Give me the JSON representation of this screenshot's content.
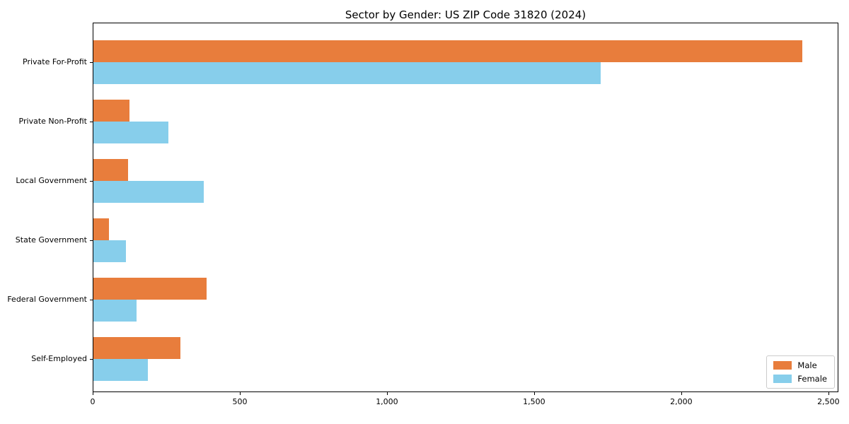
{
  "chart_data": {
    "type": "bar",
    "orientation": "horizontal",
    "title": "Sector by Gender: US ZIP Code 31820 (2024)",
    "categories": [
      "Private For-Profit",
      "Private Non-Profit",
      "Local Government",
      "State Government",
      "Federal Government",
      "Self-Employed"
    ],
    "series": [
      {
        "name": "Male",
        "color": "#E87D3C",
        "values": [
          2413,
          122,
          119,
          54,
          385,
          297
        ]
      },
      {
        "name": "Female",
        "color": "#87CEEB",
        "values": [
          1728,
          256,
          375,
          112,
          146,
          185
        ]
      }
    ],
    "xlabel": "",
    "ylabel": "",
    "xlim": [
      0,
      2534
    ],
    "x_ticks": [
      0,
      500,
      1000,
      1500,
      2000,
      2500
    ],
    "x_tick_labels": [
      "0",
      "500",
      "1,000",
      "1,500",
      "2,000",
      "2,500"
    ],
    "grid": false,
    "legend_position": "lower right",
    "axis_color": "#000000",
    "background_color": "#ffffff"
  }
}
